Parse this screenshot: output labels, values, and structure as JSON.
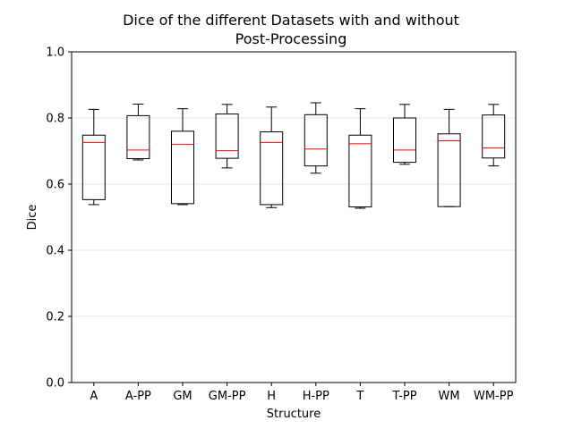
{
  "chart_data": {
    "type": "box",
    "title_line1": "Dice of the different Datasets with and without",
    "title_line2": "Post-Processing",
    "xlabel": "Structure",
    "ylabel": "Dice",
    "ylim": [
      0.0,
      1.0
    ],
    "yticks": [
      "0.0",
      "0.2",
      "0.4",
      "0.6",
      "0.8",
      "1.0"
    ],
    "ytick_values": [
      0.0,
      0.2,
      0.4,
      0.6,
      0.8,
      1.0
    ],
    "grid": "horizontal",
    "box_color": "#000000",
    "median_color": "#ff0000",
    "grid_color": "#e6e6e6",
    "categories": [
      "A",
      "A-PP",
      "GM",
      "GM-PP",
      "H",
      "H-PP",
      "T",
      "T-PP",
      "WM",
      "WM-PP"
    ],
    "boxes": [
      {
        "label": "A",
        "whisker_low": 0.538,
        "q1": 0.553,
        "median": 0.726,
        "q3": 0.748,
        "whisker_high": 0.826
      },
      {
        "label": "A-PP",
        "whisker_low": 0.673,
        "q1": 0.677,
        "median": 0.703,
        "q3": 0.807,
        "whisker_high": 0.842
      },
      {
        "label": "GM",
        "whisker_low": 0.538,
        "q1": 0.541,
        "median": 0.72,
        "q3": 0.76,
        "whisker_high": 0.828
      },
      {
        "label": "GM-PP",
        "whisker_low": 0.649,
        "q1": 0.678,
        "median": 0.701,
        "q3": 0.812,
        "whisker_high": 0.841
      },
      {
        "label": "H",
        "whisker_low": 0.529,
        "q1": 0.538,
        "median": 0.726,
        "q3": 0.758,
        "whisker_high": 0.833
      },
      {
        "label": "H-PP",
        "whisker_low": 0.633,
        "q1": 0.655,
        "median": 0.706,
        "q3": 0.81,
        "whisker_high": 0.846
      },
      {
        "label": "T",
        "whisker_low": 0.527,
        "q1": 0.531,
        "median": 0.722,
        "q3": 0.748,
        "whisker_high": 0.828
      },
      {
        "label": "T-PP",
        "whisker_low": 0.66,
        "q1": 0.666,
        "median": 0.703,
        "q3": 0.8,
        "whisker_high": 0.841
      },
      {
        "label": "WM",
        "whisker_low": 0.532,
        "q1": 0.532,
        "median": 0.731,
        "q3": 0.752,
        "whisker_high": 0.826
      },
      {
        "label": "WM-PP",
        "whisker_low": 0.655,
        "q1": 0.679,
        "median": 0.709,
        "q3": 0.809,
        "whisker_high": 0.841
      }
    ]
  }
}
